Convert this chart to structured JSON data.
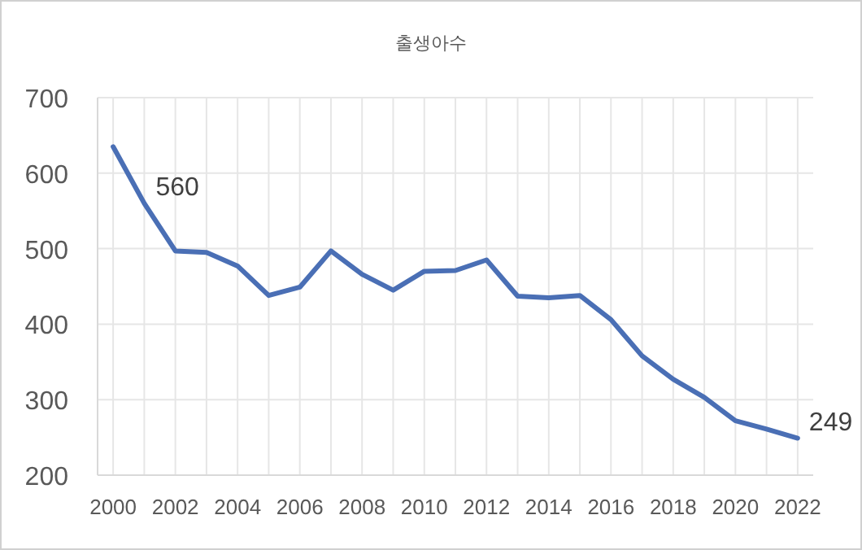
{
  "chart_data": {
    "type": "line",
    "title": "출생아수",
    "categories": [
      "2000",
      null,
      "2002",
      null,
      "2004",
      null,
      "2006",
      null,
      "2008",
      null,
      "2010",
      null,
      "2012",
      null,
      "2014",
      null,
      "2016",
      null,
      "2018",
      null,
      "2020",
      null,
      "2022"
    ],
    "series": [
      {
        "color": "#4a6fb5",
        "values": [
          635,
          560,
          497,
          495,
          477,
          438,
          449,
          497,
          466,
          445,
          470,
          471,
          485,
          437,
          435,
          438,
          406,
          358,
          327,
          303,
          272,
          261,
          249
        ],
        "value_labels": [
          null,
          "560",
          null,
          null,
          null,
          null,
          null,
          null,
          null,
          null,
          null,
          null,
          null,
          null,
          null,
          null,
          null,
          null,
          null,
          null,
          null,
          null,
          "249"
        ]
      }
    ],
    "ylim": [
      200,
      700
    ],
    "yticks": [
      200,
      300,
      400,
      500,
      600,
      700
    ],
    "grid": true,
    "marker": "none",
    "line_style": "solid"
  }
}
